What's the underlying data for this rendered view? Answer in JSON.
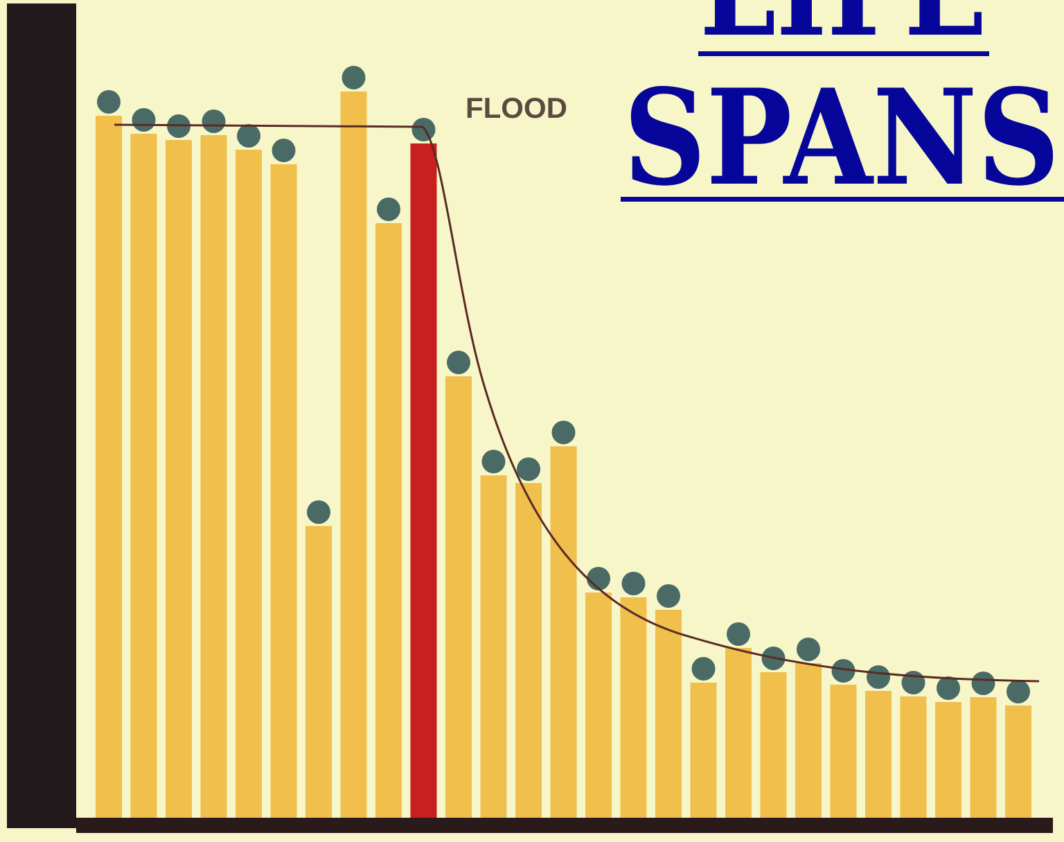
{
  "chart_data": {
    "type": "bar",
    "title_lines": [
      "LIFE",
      "SPANS"
    ],
    "annotation": "FLOOD",
    "categories": [
      null,
      null,
      null,
      null,
      null,
      null,
      null,
      null,
      null,
      null,
      null,
      null,
      null,
      null,
      null,
      null,
      null,
      null,
      null,
      null,
      null,
      null,
      null,
      null,
      null,
      null,
      null
    ],
    "values": [
      1013,
      987,
      978,
      985,
      964,
      943,
      421,
      1048,
      858,
      973,
      637,
      494,
      483,
      536,
      325,
      318,
      300,
      195,
      245,
      210,
      223,
      192,
      183,
      175,
      167,
      174,
      162
    ],
    "color": "#f0bf4c",
    "highlight_index": 9,
    "highlight_color": "#c8201e",
    "marker_color": "#4a6a66",
    "ylim": [
      0,
      1180
    ]
  }
}
